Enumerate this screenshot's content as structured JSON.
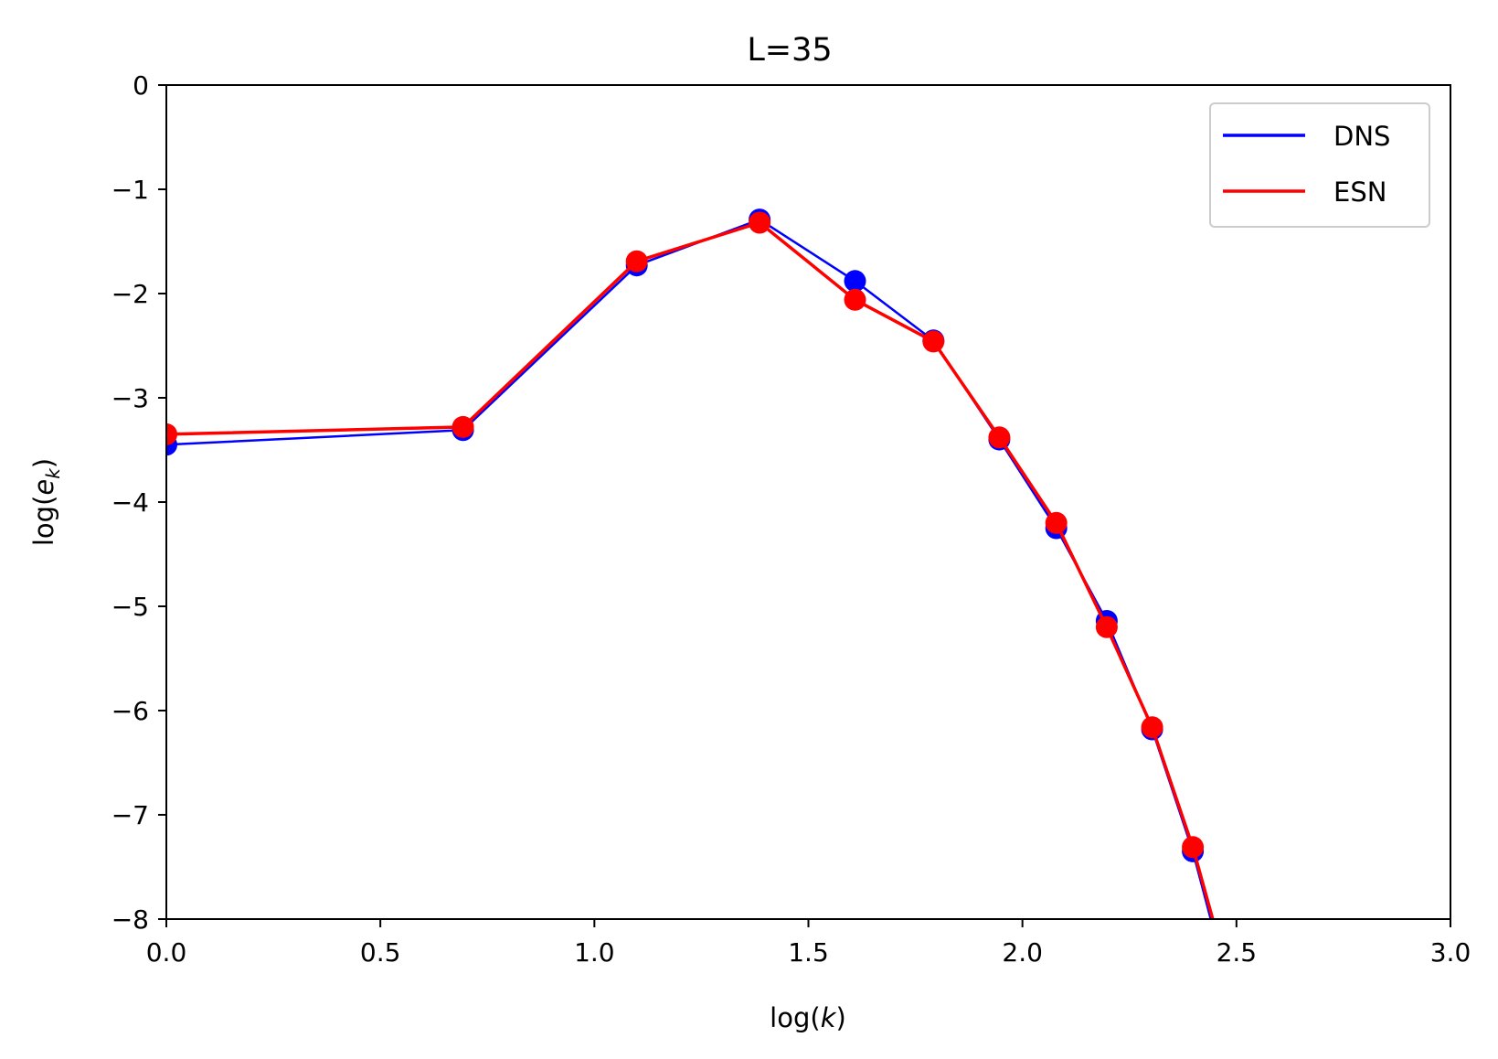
{
  "chart_data": {
    "type": "line",
    "title": "L=35",
    "xlabel": "log(",
    "xlabel_var": "k",
    "xlabel_close": ")",
    "ylabel": "log(",
    "ylabel_var": "e",
    "ylabel_sub": "k",
    "ylabel_close": ")",
    "xlim": [
      0.0,
      3.0
    ],
    "ylim": [
      -8,
      0
    ],
    "xticks": [
      0.0,
      0.5,
      1.0,
      1.5,
      2.0,
      2.5,
      3.0
    ],
    "xtick_labels": [
      "0.0",
      "0.5",
      "1.0",
      "1.5",
      "2.0",
      "2.5",
      "3.0"
    ],
    "yticks": [
      0,
      -1,
      -2,
      -3,
      -4,
      -5,
      -6,
      -7,
      -8
    ],
    "ytick_labels": [
      "0",
      "−1",
      "−2",
      "−3",
      "−4",
      "−5",
      "−6",
      "−7",
      "−8"
    ],
    "grid": false,
    "legend_position": "upper right",
    "markers": "circle",
    "series": [
      {
        "name": "DNS",
        "color": "#0000ff",
        "x": [
          0.0,
          0.693,
          1.099,
          1.386,
          1.609,
          1.792,
          1.946,
          2.079,
          2.197,
          2.303,
          2.398,
          2.485
        ],
        "y": [
          -3.45,
          -3.31,
          -1.73,
          -1.29,
          -1.88,
          -2.45,
          -3.4,
          -4.25,
          -5.14,
          -6.18,
          -7.35,
          -8.7
        ]
      },
      {
        "name": "ESN",
        "color": "#ff0000",
        "x": [
          0.0,
          0.693,
          1.099,
          1.386,
          1.609,
          1.792,
          1.946,
          2.079,
          2.197,
          2.303,
          2.398,
          2.485
        ],
        "y": [
          -3.35,
          -3.28,
          -1.69,
          -1.32,
          -2.06,
          -2.46,
          -3.38,
          -4.2,
          -5.2,
          -6.16,
          -7.31,
          -8.6
        ]
      }
    ]
  }
}
